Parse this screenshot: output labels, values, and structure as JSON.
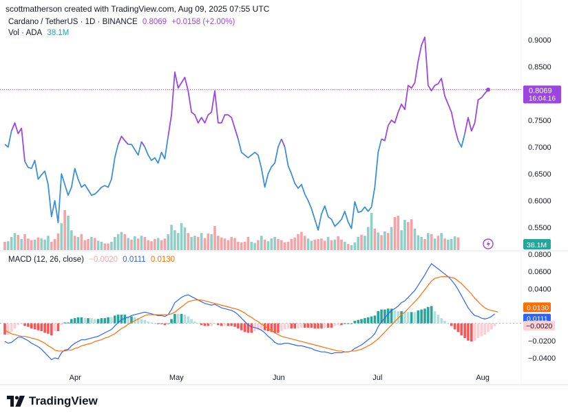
{
  "header": {
    "attribution": "scottmatherson created with TradingView.com, Aug 09, 2025 07:55 UTC"
  },
  "price_legend": {
    "symbol": "Cardano / TetherUS · 1D · BINANCE",
    "last": "0.8069",
    "change": "+0.0158 (+2.00%)",
    "color": "#9c46e0"
  },
  "volume_legend": {
    "label": "Vol · ADA",
    "value": "38.1M",
    "color": "#26a69a"
  },
  "macd_legend": {
    "label": "MACD (12, 26, close)",
    "hist": "−0.0020",
    "macd": "0.0111",
    "signal": "0.0130"
  },
  "price_badge": {
    "value": "0.8069",
    "countdown": "16:04:16"
  },
  "volume_badge": {
    "value": "38.1M"
  },
  "macd_badges": {
    "signal": "0.0130",
    "macd": "0.0111",
    "hist": "−0.0020"
  },
  "branding": {
    "name": "TradingView"
  },
  "colors": {
    "bull": "#26a69a",
    "bear": "#ef5350",
    "price_up": "#9c46e0",
    "price_down": "#3a8fd6",
    "macd_line": "#2962ff",
    "signal_line": "#ff6d00"
  },
  "chart_data": [
    {
      "type": "line",
      "title": "Cardano / TetherUS · 1D · BINANCE",
      "price_axis": [
        0.9,
        0.85,
        0.75,
        0.7,
        0.65,
        0.6,
        0.55
      ],
      "x_labels": [
        "Apr",
        "May",
        "Jun",
        "Jul",
        "Aug"
      ],
      "x_label_index": [
        21,
        51,
        82,
        112,
        143
      ],
      "close": [
        0.705,
        0.7,
        0.73,
        0.745,
        0.725,
        0.735,
        0.673,
        0.662,
        0.66,
        0.675,
        0.64,
        0.648,
        0.655,
        0.63,
        0.57,
        0.6,
        0.559,
        0.65,
        0.63,
        0.61,
        0.625,
        0.66,
        0.64,
        0.625,
        0.63,
        0.62,
        0.61,
        0.612,
        0.618,
        0.625,
        0.628,
        0.625,
        0.64,
        0.68,
        0.705,
        0.72,
        0.712,
        0.705,
        0.705,
        0.695,
        0.685,
        0.71,
        0.7,
        0.685,
        0.675,
        0.68,
        0.67,
        0.69,
        0.678,
        0.72,
        0.76,
        0.84,
        0.81,
        0.82,
        0.83,
        0.805,
        0.765,
        0.76,
        0.745,
        0.755,
        0.745,
        0.76,
        0.765,
        0.805,
        0.745,
        0.745,
        0.76,
        0.76,
        0.755,
        0.735,
        0.715,
        0.69,
        0.685,
        0.68,
        0.685,
        0.69,
        0.685,
        0.66,
        0.625,
        0.65,
        0.663,
        0.67,
        0.7,
        0.715,
        0.7,
        0.665,
        0.65,
        0.632,
        0.623,
        0.63,
        0.612,
        0.6,
        0.585,
        0.565,
        0.545,
        0.575,
        0.59,
        0.57,
        0.565,
        0.552,
        0.558,
        0.565,
        0.58,
        0.56,
        0.548,
        0.598,
        0.578,
        0.58,
        0.588,
        0.58,
        0.588,
        0.625,
        0.69,
        0.715,
        0.712,
        0.74,
        0.75,
        0.745,
        0.765,
        0.78,
        0.77,
        0.815,
        0.81,
        0.82,
        0.86,
        0.89,
        0.905,
        0.815,
        0.805,
        0.815,
        0.818,
        0.828,
        0.795,
        0.78,
        0.765,
        0.735,
        0.712,
        0.7,
        0.725,
        0.755,
        0.73,
        0.745,
        0.788,
        0.792,
        0.8,
        0.807
      ],
      "volume_bars": [
        {
          "h": 0.3,
          "up": false
        },
        {
          "h": 0.32,
          "up": true
        },
        {
          "h": 0.48,
          "up": true
        },
        {
          "h": 0.62,
          "up": true
        },
        {
          "h": 0.55,
          "up": false
        },
        {
          "h": 0.4,
          "up": true
        },
        {
          "h": 0.58,
          "up": false
        },
        {
          "h": 0.42,
          "up": false
        },
        {
          "h": 0.36,
          "up": false
        },
        {
          "h": 0.38,
          "up": true
        },
        {
          "h": 0.46,
          "up": false
        },
        {
          "h": 0.42,
          "up": true
        },
        {
          "h": 0.38,
          "up": true
        },
        {
          "h": 0.52,
          "up": true
        },
        {
          "h": 0.3,
          "up": false
        },
        {
          "h": 0.4,
          "up": false
        },
        {
          "h": 0.6,
          "up": false
        },
        {
          "h": 0.98,
          "up": true
        },
        {
          "h": 1.45,
          "up": false
        },
        {
          "h": 1.25,
          "up": true
        },
        {
          "h": 0.72,
          "up": true
        },
        {
          "h": 0.52,
          "up": false
        },
        {
          "h": 0.48,
          "up": true
        },
        {
          "h": 0.58,
          "up": false
        },
        {
          "h": 0.36,
          "up": false
        },
        {
          "h": 0.4,
          "up": false
        },
        {
          "h": 0.48,
          "up": true
        },
        {
          "h": 0.44,
          "up": false
        },
        {
          "h": 0.34,
          "up": true
        },
        {
          "h": 0.3,
          "up": true
        },
        {
          "h": 0.24,
          "up": false
        },
        {
          "h": 0.24,
          "up": false
        },
        {
          "h": 0.3,
          "up": true
        },
        {
          "h": 0.48,
          "up": true
        },
        {
          "h": 0.58,
          "up": true
        },
        {
          "h": 0.66,
          "up": true
        },
        {
          "h": 0.58,
          "up": false
        },
        {
          "h": 0.44,
          "up": true
        },
        {
          "h": 0.38,
          "up": false
        },
        {
          "h": 0.5,
          "up": true
        },
        {
          "h": 0.42,
          "up": false
        },
        {
          "h": 0.52,
          "up": true
        },
        {
          "h": 0.48,
          "up": false
        },
        {
          "h": 0.36,
          "up": false
        },
        {
          "h": 0.32,
          "up": false
        },
        {
          "h": 0.4,
          "up": false
        },
        {
          "h": 0.44,
          "up": true
        },
        {
          "h": 0.36,
          "up": false
        },
        {
          "h": 0.42,
          "up": false
        },
        {
          "h": 0.58,
          "up": true
        },
        {
          "h": 0.92,
          "up": true
        },
        {
          "h": 0.72,
          "up": true
        },
        {
          "h": 0.62,
          "up": true
        },
        {
          "h": 0.98,
          "up": true
        },
        {
          "h": 0.82,
          "up": true
        },
        {
          "h": 0.62,
          "up": false
        },
        {
          "h": 0.48,
          "up": true
        },
        {
          "h": 0.52,
          "up": true
        },
        {
          "h": 0.48,
          "up": false
        },
        {
          "h": 0.62,
          "up": true
        },
        {
          "h": 0.44,
          "up": false
        },
        {
          "h": 0.6,
          "up": false
        },
        {
          "h": 0.58,
          "up": true
        },
        {
          "h": 0.88,
          "up": false
        },
        {
          "h": 0.52,
          "up": false
        },
        {
          "h": 0.46,
          "up": false
        },
        {
          "h": 0.42,
          "up": false
        },
        {
          "h": 0.36,
          "up": false
        },
        {
          "h": 0.48,
          "up": false
        },
        {
          "h": 0.44,
          "up": false
        },
        {
          "h": 0.3,
          "up": false
        },
        {
          "h": 0.28,
          "up": false
        },
        {
          "h": 0.3,
          "up": false
        },
        {
          "h": 0.48,
          "up": false
        },
        {
          "h": 0.3,
          "up": true
        },
        {
          "h": 0.26,
          "up": true
        },
        {
          "h": 0.36,
          "up": false
        },
        {
          "h": 0.52,
          "up": true
        },
        {
          "h": 0.38,
          "up": false
        },
        {
          "h": 0.32,
          "up": true
        },
        {
          "h": 0.42,
          "up": true
        },
        {
          "h": 0.48,
          "up": true
        },
        {
          "h": 0.4,
          "up": false
        },
        {
          "h": 0.36,
          "up": false
        },
        {
          "h": 0.28,
          "up": false
        },
        {
          "h": 0.3,
          "up": false
        },
        {
          "h": 0.4,
          "up": false
        },
        {
          "h": 0.46,
          "up": false
        },
        {
          "h": 0.58,
          "up": false
        },
        {
          "h": 0.66,
          "up": false
        },
        {
          "h": 0.52,
          "up": false
        },
        {
          "h": 0.42,
          "up": true
        },
        {
          "h": 0.34,
          "up": true
        },
        {
          "h": 0.38,
          "up": false
        },
        {
          "h": 0.4,
          "up": false
        },
        {
          "h": 0.42,
          "up": false
        },
        {
          "h": 0.34,
          "up": false
        },
        {
          "h": 0.48,
          "up": true
        },
        {
          "h": 0.36,
          "up": false
        },
        {
          "h": 0.38,
          "up": true
        },
        {
          "h": 0.5,
          "up": false
        },
        {
          "h": 0.38,
          "up": false
        },
        {
          "h": 0.3,
          "up": true
        },
        {
          "h": 0.22,
          "up": false
        },
        {
          "h": 0.18,
          "up": true
        },
        {
          "h": 0.28,
          "up": true
        },
        {
          "h": 0.48,
          "up": true
        },
        {
          "h": 0.56,
          "up": false
        },
        {
          "h": 0.52,
          "up": true
        },
        {
          "h": 0.84,
          "up": true
        },
        {
          "h": 1.35,
          "up": true
        },
        {
          "h": 0.78,
          "up": false
        },
        {
          "h": 0.64,
          "up": true
        },
        {
          "h": 0.54,
          "up": false
        },
        {
          "h": 0.68,
          "up": true
        },
        {
          "h": 0.62,
          "up": false
        },
        {
          "h": 0.84,
          "up": true
        },
        {
          "h": 1.2,
          "up": false
        },
        {
          "h": 1.25,
          "up": false
        },
        {
          "h": 0.72,
          "up": true
        },
        {
          "h": 1.1,
          "up": true
        },
        {
          "h": 1.02,
          "up": false
        },
        {
          "h": 1.12,
          "up": false
        },
        {
          "h": 0.78,
          "up": true
        },
        {
          "h": 0.54,
          "up": true
        },
        {
          "h": 0.48,
          "up": true
        },
        {
          "h": 0.4,
          "up": false
        },
        {
          "h": 0.62,
          "up": true
        },
        {
          "h": 0.58,
          "up": false
        },
        {
          "h": 0.42,
          "up": true
        },
        {
          "h": 0.52,
          "up": false
        },
        {
          "h": 0.62,
          "up": true
        },
        {
          "h": 0.42,
          "up": false
        },
        {
          "h": 0.38,
          "up": true
        },
        {
          "h": 0.4,
          "up": true
        },
        {
          "h": 0.5,
          "up": true
        },
        {
          "h": 0.46,
          "up": false
        }
      ],
      "volume_max_m": 200
    },
    {
      "type": "line",
      "title": "MACD (12, 26, close)",
      "y_axis": [
        0.08,
        0.06,
        0.04,
        -0.02,
        -0.04
      ],
      "ylim": [
        -0.048,
        0.083
      ],
      "macd": [
        -0.021,
        -0.023,
        -0.022,
        -0.019,
        -0.016,
        -0.016,
        -0.018,
        -0.02,
        -0.023,
        -0.025,
        -0.027,
        -0.03,
        -0.034,
        -0.038,
        -0.042,
        -0.04,
        -0.041,
        -0.034,
        -0.031,
        -0.03,
        -0.026,
        -0.023,
        -0.021,
        -0.019,
        -0.019,
        -0.018,
        -0.017,
        -0.016,
        -0.015,
        -0.013,
        -0.011,
        -0.009,
        -0.007,
        -0.003,
        0.001,
        0.004,
        0.006,
        0.007,
        0.009,
        0.01,
        0.011,
        0.012,
        0.013,
        0.012,
        0.011,
        0.01,
        0.009,
        0.009,
        0.008,
        0.01,
        0.016,
        0.024,
        0.027,
        0.03,
        0.032,
        0.033,
        0.031,
        0.029,
        0.027,
        0.025,
        0.023,
        0.022,
        0.021,
        0.022,
        0.02,
        0.018,
        0.017,
        0.016,
        0.015,
        0.013,
        0.01,
        0.006,
        0.002,
        -0.002,
        -0.004,
        -0.005,
        -0.006,
        -0.008,
        -0.011,
        -0.015,
        -0.018,
        -0.022,
        -0.024,
        -0.024,
        -0.023,
        -0.023,
        -0.024,
        -0.025,
        -0.026,
        -0.026,
        -0.027,
        -0.028,
        -0.029,
        -0.031,
        -0.032,
        -0.033,
        -0.033,
        -0.034,
        -0.035,
        -0.034,
        -0.034,
        -0.034,
        -0.033,
        -0.033,
        -0.032,
        -0.029,
        -0.027,
        -0.025,
        -0.022,
        -0.019,
        -0.016,
        -0.012,
        -0.004,
        0.002,
        0.006,
        0.011,
        0.015,
        0.017,
        0.02,
        0.024,
        0.026,
        0.03,
        0.034,
        0.038,
        0.044,
        0.05,
        0.056,
        0.063,
        0.069,
        0.066,
        0.063,
        0.06,
        0.057,
        0.054,
        0.05,
        0.045,
        0.039,
        0.032,
        0.025,
        0.018,
        0.013,
        0.009,
        0.008,
        0.006,
        0.005,
        0.006,
        0.008,
        0.011
      ],
      "signal": [
        -0.008,
        -0.01,
        -0.012,
        -0.013,
        -0.014,
        -0.015,
        -0.015,
        -0.016,
        -0.017,
        -0.018,
        -0.019,
        -0.021,
        -0.023,
        -0.026,
        -0.028,
        -0.031,
        -0.032,
        -0.032,
        -0.032,
        -0.031,
        -0.031,
        -0.029,
        -0.028,
        -0.026,
        -0.025,
        -0.024,
        -0.023,
        -0.021,
        -0.02,
        -0.019,
        -0.017,
        -0.016,
        -0.014,
        -0.012,
        -0.009,
        -0.006,
        -0.004,
        -0.001,
        0.001,
        0.003,
        0.005,
        0.007,
        0.009,
        0.01,
        0.01,
        0.01,
        0.01,
        0.01,
        0.01,
        0.01,
        0.011,
        0.013,
        0.016,
        0.019,
        0.022,
        0.025,
        0.026,
        0.027,
        0.027,
        0.027,
        0.026,
        0.025,
        0.024,
        0.023,
        0.022,
        0.021,
        0.02,
        0.019,
        0.018,
        0.017,
        0.016,
        0.014,
        0.012,
        0.009,
        0.007,
        0.004,
        0.002,
        -0.001,
        -0.003,
        -0.006,
        -0.008,
        -0.011,
        -0.013,
        -0.015,
        -0.016,
        -0.017,
        -0.018,
        -0.019,
        -0.02,
        -0.021,
        -0.022,
        -0.023,
        -0.024,
        -0.025,
        -0.026,
        -0.027,
        -0.028,
        -0.029,
        -0.03,
        -0.031,
        -0.032,
        -0.032,
        -0.033,
        -0.033,
        -0.032,
        -0.032,
        -0.031,
        -0.03,
        -0.028,
        -0.026,
        -0.024,
        -0.021,
        -0.018,
        -0.014,
        -0.01,
        -0.006,
        -0.002,
        0.002,
        0.006,
        0.01,
        0.013,
        0.017,
        0.021,
        0.025,
        0.029,
        0.034,
        0.039,
        0.044,
        0.049,
        0.052,
        0.053,
        0.054,
        0.054,
        0.054,
        0.053,
        0.052,
        0.049,
        0.046,
        0.042,
        0.038,
        0.034,
        0.029,
        0.025,
        0.021,
        0.018,
        0.016,
        0.015,
        0.014,
        0.013
      ]
    }
  ]
}
